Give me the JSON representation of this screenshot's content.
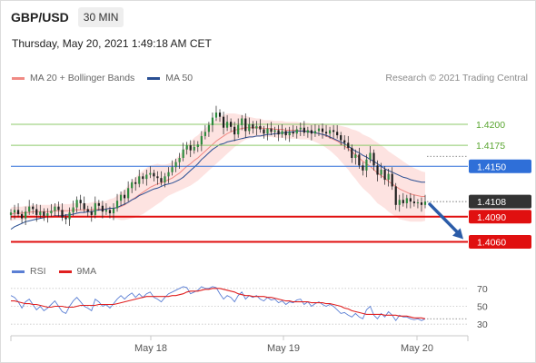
{
  "header": {
    "symbol": "GBP/USD",
    "timeframe": "30 MIN"
  },
  "datetime": "Thursday, May 20, 2021 1:49:18 AM CET",
  "credit": "Research © 2021 Trading Central",
  "legend": {
    "bollinger": {
      "label": "MA 20 + Bollinger Bands",
      "color": "#f08a84"
    },
    "ma50": {
      "label": "MA 50",
      "color": "#2a4f93"
    }
  },
  "rsi_legend": {
    "rsi": {
      "label": "RSI",
      "color": "#5b7fd4"
    },
    "ma9": {
      "label": "9MA",
      "color": "#e02020"
    }
  },
  "chart_data": [
    {
      "type": "candlestick",
      "title": "GBP/USD",
      "x_ticks": [
        "May 18",
        "May 19",
        "May 20"
      ],
      "ylim": [
        1.404,
        1.424
      ],
      "bollinger_fill_color": "#fde3e1",
      "levels": [
        {
          "label": "1.4200",
          "value": 1.42,
          "kind": "resistance",
          "color": "#8cc96a"
        },
        {
          "label": "1.4175",
          "value": 1.4175,
          "kind": "resistance",
          "color": "#8cc96a"
        },
        {
          "label": "1.4150",
          "value": 1.415,
          "kind": "pivot",
          "color": "#2f6fd8"
        },
        {
          "label": "1.4108",
          "value": 1.4108,
          "kind": "current",
          "color": "#333333"
        },
        {
          "label": "1.4090",
          "value": 1.409,
          "kind": "support",
          "color": "#e01010"
        },
        {
          "label": "1.4060",
          "value": 1.406,
          "kind": "support",
          "color": "#e01010"
        }
      ],
      "close": [
        1.4095,
        1.4098,
        1.4093,
        1.4088,
        1.4096,
        1.4102,
        1.4099,
        1.4092,
        1.4096,
        1.4091,
        1.4094,
        1.4097,
        1.4102,
        1.4098,
        1.4089,
        1.4087,
        1.4095,
        1.4101,
        1.411,
        1.4106,
        1.4099,
        1.4096,
        1.4092,
        1.4106,
        1.4103,
        1.4096,
        1.4098,
        1.4094,
        1.41,
        1.4109,
        1.4116,
        1.4112,
        1.4124,
        1.4131,
        1.4129,
        1.4138,
        1.4135,
        1.414,
        1.4142,
        1.4138,
        1.4136,
        1.4131,
        1.4138,
        1.4143,
        1.4149,
        1.4155,
        1.416,
        1.417,
        1.4175,
        1.4169,
        1.4173,
        1.4176,
        1.4186,
        1.4191,
        1.4199,
        1.4208,
        1.4214,
        1.4209,
        1.4196,
        1.4203,
        1.4197,
        1.4188,
        1.4199,
        1.4207,
        1.4192,
        1.42,
        1.4195,
        1.4198,
        1.4194,
        1.4189,
        1.4195,
        1.4191,
        1.4193,
        1.4188,
        1.4192,
        1.4187,
        1.4191,
        1.4189,
        1.4194,
        1.4196,
        1.419,
        1.4193,
        1.4189,
        1.4192,
        1.4195,
        1.4191,
        1.4189,
        1.4193,
        1.4191,
        1.4187,
        1.4181,
        1.4178,
        1.4172,
        1.416,
        1.4164,
        1.4151,
        1.4145,
        1.4158,
        1.4166,
        1.4151,
        1.414,
        1.4146,
        1.4134,
        1.4141,
        1.4126,
        1.4104,
        1.411,
        1.4106,
        1.4112,
        1.4108,
        1.4106,
        1.4107,
        1.4104,
        1.4108
      ],
      "ma50": [
        1.4075,
        1.4078,
        1.408,
        1.4082,
        1.4084,
        1.4085,
        1.4086,
        1.4087,
        1.4088,
        1.4089,
        1.409,
        1.409,
        1.4091,
        1.4091,
        1.4091,
        1.4092,
        1.4092,
        1.4093,
        1.4094,
        1.4095,
        1.4095,
        1.4096,
        1.4096,
        1.4097,
        1.4098,
        1.4098,
        1.4099,
        1.41,
        1.41,
        1.4101,
        1.4103,
        1.4105,
        1.4107,
        1.411,
        1.4112,
        1.4115,
        1.4117,
        1.4119,
        1.4121,
        1.4123,
        1.4124,
        1.4126,
        1.4128,
        1.4129,
        1.413,
        1.4132,
        1.4134,
        1.4137,
        1.4141,
        1.4145,
        1.4149,
        1.4153,
        1.4158,
        1.4162,
        1.4166,
        1.417,
        1.4173,
        1.4176,
        1.4177,
        1.4179,
        1.418,
        1.4181,
        1.4182,
        1.4183,
        1.4184,
        1.4185,
        1.4185,
        1.4186,
        1.4186,
        1.4187,
        1.4188,
        1.4188,
        1.4189,
        1.4189,
        1.419,
        1.419,
        1.4191,
        1.4191,
        1.4192,
        1.4192,
        1.4192,
        1.4191,
        1.4191,
        1.419,
        1.4189,
        1.4188,
        1.4187,
        1.4185,
        1.4183,
        1.4181,
        1.4179,
        1.4177,
        1.4174,
        1.4171,
        1.4168,
        1.4166,
        1.4163,
        1.4161,
        1.4158,
        1.4156,
        1.4153,
        1.415,
        1.4147,
        1.4145,
        1.4143,
        1.4141,
        1.4139,
        1.4137,
        1.4136,
        1.4134,
        1.4133,
        1.4132,
        1.4131,
        1.4131
      ],
      "ma20": [
        1.4093,
        1.4094,
        1.4094,
        1.4094,
        1.4095,
        1.4095,
        1.4096,
        1.4096,
        1.4096,
        1.4096,
        1.4096,
        1.4096,
        1.4097,
        1.4097,
        1.4097,
        1.4097,
        1.4097,
        1.4098,
        1.4098,
        1.4098,
        1.4098,
        1.4098,
        1.4098,
        1.4099,
        1.4099,
        1.4099,
        1.4099,
        1.41,
        1.41,
        1.4101,
        1.4102,
        1.4104,
        1.4107,
        1.411,
        1.4113,
        1.4116,
        1.4119,
        1.4122,
        1.4125,
        1.4127,
        1.4129,
        1.413,
        1.4132,
        1.4134,
        1.4136,
        1.4139,
        1.4142,
        1.4146,
        1.415,
        1.4153,
        1.4157,
        1.416,
        1.4164,
        1.4168,
        1.4172,
        1.4176,
        1.418,
        1.4183,
        1.4186,
        1.4189,
        1.4191,
        1.4193,
        1.4194,
        1.4195,
        1.4196,
        1.4196,
        1.4196,
        1.4196,
        1.4196,
        1.4195,
        1.4195,
        1.4195,
        1.4194,
        1.4194,
        1.4194,
        1.4193,
        1.4193,
        1.4193,
        1.4193,
        1.4192,
        1.4192,
        1.4192,
        1.4191,
        1.419,
        1.4189,
        1.4188,
        1.4186,
        1.4184,
        1.4182,
        1.418,
        1.4177,
        1.4174,
        1.4171,
        1.4167,
        1.4164,
        1.416,
        1.4156,
        1.4153,
        1.415,
        1.4146,
        1.4142,
        1.4139,
        1.4136,
        1.4132,
        1.4129,
        1.4126,
        1.4123,
        1.4121,
        1.4119,
        1.4117,
        1.4116,
        1.4115,
        1.4114,
        1.4114
      ],
      "bb_width": [
        0.0008,
        0.0008,
        0.0008,
        0.0008,
        0.0008,
        0.0008,
        0.0008,
        0.0008,
        0.0008,
        0.0008,
        0.0008,
        0.0008,
        0.0008,
        0.0008,
        0.0008,
        0.0008,
        0.0008,
        0.0008,
        0.0008,
        0.0008,
        0.0008,
        0.0008,
        0.0009,
        0.0009,
        0.0009,
        0.0009,
        0.001,
        0.0011,
        0.0012,
        0.0014,
        0.0016,
        0.0018,
        0.002,
        0.0022,
        0.0024,
        0.0025,
        0.0026,
        0.0026,
        0.0026,
        0.0025,
        0.0024,
        0.0022,
        0.002,
        0.0019,
        0.0019,
        0.002,
        0.0021,
        0.0023,
        0.0025,
        0.0026,
        0.0027,
        0.0027,
        0.0027,
        0.0027,
        0.0027,
        0.0027,
        0.0027,
        0.0026,
        0.0025,
        0.0024,
        0.0022,
        0.002,
        0.0018,
        0.0016,
        0.0014,
        0.0013,
        0.0012,
        0.0011,
        0.0011,
        0.001,
        0.001,
        0.001,
        0.001,
        0.001,
        0.001,
        0.001,
        0.001,
        0.001,
        0.001,
        0.001,
        0.001,
        0.001,
        0.001,
        0.0011,
        0.0012,
        0.0013,
        0.0014,
        0.0015,
        0.0017,
        0.0019,
        0.0021,
        0.0023,
        0.0025,
        0.0027,
        0.0029,
        0.0031,
        0.0032,
        0.0033,
        0.0034,
        0.0035,
        0.0036,
        0.0036,
        0.0036,
        0.0036,
        0.0036,
        0.0036,
        0.0036,
        0.0035,
        0.0034,
        0.0033,
        0.0032,
        0.0031,
        0.003,
        0.0029
      ],
      "projection": {
        "from": 1.4106,
        "to": 1.406,
        "color": "#2b5ca8"
      }
    },
    {
      "type": "line",
      "title": "RSI",
      "ylim": [
        20,
        80
      ],
      "y_ticks": [
        70,
        50,
        30
      ],
      "series": [
        {
          "name": "RSI",
          "color": "#5b7fd4",
          "values": [
            62,
            60,
            55,
            48,
            55,
            58,
            52,
            46,
            50,
            45,
            48,
            52,
            56,
            50,
            44,
            42,
            50,
            56,
            60,
            55,
            50,
            48,
            45,
            58,
            55,
            50,
            52,
            48,
            53,
            58,
            62,
            58,
            62,
            65,
            60,
            64,
            60,
            64,
            66,
            60,
            58,
            55,
            60,
            64,
            66,
            68,
            70,
            72,
            71,
            64,
            66,
            68,
            72,
            70,
            70,
            72,
            71,
            64,
            58,
            62,
            60,
            55,
            62,
            66,
            58,
            62,
            60,
            62,
            58,
            56,
            60,
            57,
            58,
            54,
            56,
            52,
            55,
            54,
            57,
            58,
            52,
            55,
            50,
            53,
            55,
            52,
            50,
            52,
            50,
            46,
            42,
            43,
            40,
            38,
            42,
            38,
            36,
            46,
            50,
            40,
            36,
            42,
            38,
            44,
            40,
            34,
            40,
            38,
            38,
            36,
            35,
            36,
            34,
            36
          ]
        },
        {
          "name": "9MA",
          "color": "#e02020",
          "values": [
            56,
            56,
            55,
            54,
            53,
            53,
            52,
            52,
            51,
            50,
            49,
            49,
            50,
            50,
            50,
            49,
            49,
            49,
            50,
            51,
            51,
            51,
            51,
            51,
            52,
            52,
            52,
            52,
            52,
            53,
            54,
            55,
            56,
            57,
            58,
            59,
            60,
            61,
            61,
            61,
            61,
            61,
            61,
            61,
            62,
            62,
            63,
            64,
            66,
            67,
            67,
            67,
            68,
            69,
            69,
            70,
            70,
            70,
            69,
            68,
            67,
            66,
            64,
            63,
            62,
            62,
            61,
            61,
            61,
            61,
            60,
            60,
            59,
            58,
            57,
            56,
            56,
            55,
            55,
            55,
            55,
            55,
            54,
            54,
            54,
            54,
            53,
            53,
            52,
            51,
            50,
            48,
            47,
            45,
            44,
            43,
            42,
            41,
            41,
            41,
            41,
            41,
            40,
            40,
            40,
            40,
            39,
            39,
            39,
            38,
            37,
            37,
            37,
            36
          ]
        }
      ]
    }
  ]
}
